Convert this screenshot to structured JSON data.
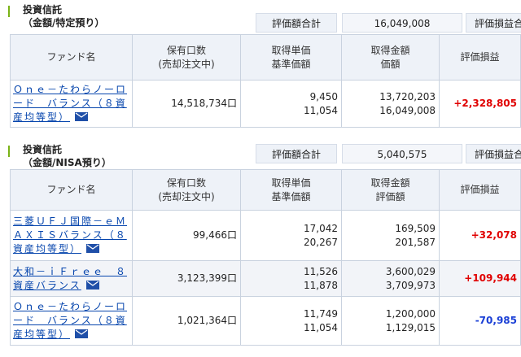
{
  "sections": [
    {
      "title": "投資信託",
      "subtitle": "（金額/特定預り）",
      "summary_label": "評価額合計",
      "summary_value": "16,049,008",
      "summary_pl_label": "評価損益合",
      "headers": {
        "fund": "ファンド名",
        "units": [
          "保有口数",
          "(売却注文中)"
        ],
        "price": [
          "取得単価",
          "基準価額"
        ],
        "amount": [
          "取得金額",
          "価額"
        ],
        "pl": "評価損益"
      },
      "rows": [
        {
          "fund": "Ｏｎｅ－たわらノーロード　バランス（８資産均等型）",
          "units": "14,518,734口",
          "cost_price": "9,450",
          "nav": "11,054",
          "cost_amount": "13,720,203",
          "value": "16,049,008",
          "pl": "+2,328,805",
          "edge": "買"
        }
      ]
    },
    {
      "title": "投資信託",
      "subtitle": "（金額/NISA預り）",
      "summary_label": "評価額合計",
      "summary_value": "5,040,575",
      "summary_pl_label": "評価損益合",
      "headers": {
        "fund": "ファンド名",
        "units": [
          "保有口数",
          "(売却注文中)"
        ],
        "price": [
          "取得単価",
          "基準価額"
        ],
        "amount": [
          "取得金額",
          "評価額"
        ],
        "pl": "評価損益"
      },
      "rows": [
        {
          "fund": "三菱ＵＦＪ国際－ｅＭＡＸＩＳバランス（８資産均等型）",
          "units": "99,466口",
          "cost_price": "17,042",
          "nav": "20,267",
          "cost_amount": "169,509",
          "value": "201,587",
          "pl": "+32,078",
          "edge": "買"
        },
        {
          "fund": "大和－ｉＦｒｅｅ　８資産バランス",
          "units": "3,123,399口",
          "cost_price": "11,526",
          "nav": "11,878",
          "cost_amount": "3,600,029",
          "value": "3,709,973",
          "pl": "+109,944",
          "edge": "買"
        },
        {
          "fund": "Ｏｎｅ－たわらノーロード　バランス（８資産均等型）",
          "units": "1,021,364口",
          "cost_price": "11,749",
          "nav": "11,054",
          "cost_amount": "1,200,000",
          "value": "1,129,015",
          "pl": "-70,985",
          "edge": "買"
        }
      ]
    }
  ],
  "colors": {
    "gain": "#e00000",
    "loss": "#1a3fd6",
    "header_bg": "#eef2f8",
    "accent": "#7ab317",
    "link": "#0645ad"
  },
  "icons": {
    "mail": "mail-icon"
  }
}
